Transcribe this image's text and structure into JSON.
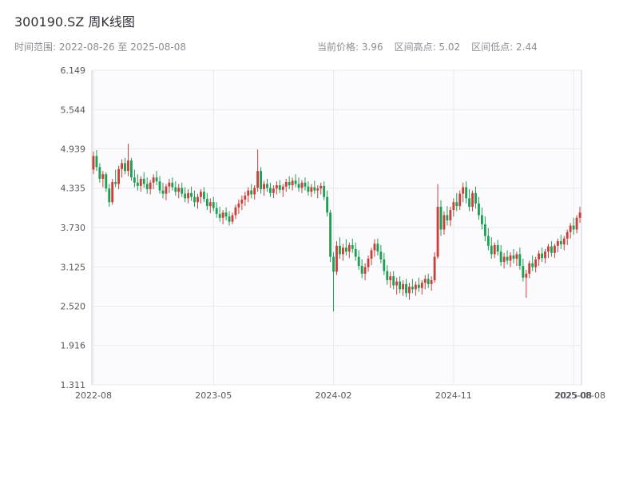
{
  "header": {
    "title": "300190.SZ 周K线图",
    "date_range": "时间范围: 2022-08-26 至 2025-08-08",
    "current_price_text": "当前价格: 3.96",
    "range_high_text": "区间高点: 5.02",
    "range_low_text": "区间低点: 2.44"
  },
  "chart_data": {
    "type": "candlestick",
    "title": "300190.SZ 周K线图",
    "xlabel": "",
    "ylabel": "",
    "ylim": [
      1.311,
      6.149
    ],
    "y_ticks": [
      "6.149",
      "5.544",
      "4.939",
      "4.335",
      "3.730",
      "3.125",
      "2.520",
      "1.916",
      "1.311"
    ],
    "x_ticks": [
      {
        "label": "2022-08",
        "index": 0
      },
      {
        "label": "2023-05",
        "index": 38
      },
      {
        "label": "2024-02",
        "index": 76
      },
      {
        "label": "2024-11",
        "index": 114
      },
      {
        "label": "2025-08",
        "index": 152
      }
    ],
    "end_tick": {
      "label": "2025-08-08",
      "index": 154
    },
    "grid": true,
    "legend": "none",
    "colors": {
      "up": "#c8403a",
      "down": "#1f9e55",
      "grid": "#e9e9ef",
      "border": "#cfcfd8",
      "plot_bg": "#fbfbfd",
      "tick_text": "#55565f"
    },
    "ohlc_note": "weekly candles [open, high, low, close], estimated from plot",
    "candles": [
      [
        4.62,
        4.9,
        4.55,
        4.83
      ],
      [
        4.83,
        4.92,
        4.6,
        4.66
      ],
      [
        4.66,
        4.72,
        4.42,
        4.48
      ],
      [
        4.48,
        4.6,
        4.35,
        4.55
      ],
      [
        4.55,
        4.58,
        4.28,
        4.33
      ],
      [
        4.33,
        4.4,
        4.05,
        4.12
      ],
      [
        4.12,
        4.48,
        4.08,
        4.43
      ],
      [
        4.43,
        4.62,
        4.35,
        4.4
      ],
      [
        4.4,
        4.68,
        4.32,
        4.63
      ],
      [
        4.63,
        4.78,
        4.5,
        4.72
      ],
      [
        4.72,
        4.8,
        4.55,
        4.6
      ],
      [
        4.6,
        5.02,
        4.52,
        4.76
      ],
      [
        4.76,
        4.8,
        4.45,
        4.5
      ],
      [
        4.5,
        4.62,
        4.35,
        4.42
      ],
      [
        4.42,
        4.55,
        4.3,
        4.37
      ],
      [
        4.37,
        4.52,
        4.28,
        4.48
      ],
      [
        4.48,
        4.58,
        4.34,
        4.4
      ],
      [
        4.4,
        4.5,
        4.25,
        4.32
      ],
      [
        4.32,
        4.46,
        4.24,
        4.42
      ],
      [
        4.42,
        4.55,
        4.32,
        4.5
      ],
      [
        4.5,
        4.6,
        4.38,
        4.44
      ],
      [
        4.44,
        4.52,
        4.25,
        4.3
      ],
      [
        4.3,
        4.42,
        4.18,
        4.25
      ],
      [
        4.25,
        4.4,
        4.15,
        4.36
      ],
      [
        4.36,
        4.48,
        4.26,
        4.42
      ],
      [
        4.42,
        4.5,
        4.3,
        4.35
      ],
      [
        4.35,
        4.44,
        4.22,
        4.28
      ],
      [
        4.28,
        4.4,
        4.18,
        4.34
      ],
      [
        4.34,
        4.42,
        4.2,
        4.25
      ],
      [
        4.25,
        4.35,
        4.12,
        4.18
      ],
      [
        4.18,
        4.32,
        4.1,
        4.26
      ],
      [
        4.26,
        4.36,
        4.14,
        4.2
      ],
      [
        4.2,
        4.3,
        4.05,
        4.12
      ],
      [
        4.12,
        4.25,
        4.02,
        4.2
      ],
      [
        4.2,
        4.32,
        4.1,
        4.28
      ],
      [
        4.28,
        4.35,
        4.12,
        4.17
      ],
      [
        4.17,
        4.26,
        4.0,
        4.06
      ],
      [
        4.06,
        4.18,
        3.95,
        4.12
      ],
      [
        4.12,
        4.2,
        3.98,
        4.03
      ],
      [
        4.03,
        4.12,
        3.88,
        3.94
      ],
      [
        3.94,
        4.05,
        3.82,
        3.88
      ],
      [
        3.88,
        4.0,
        3.78,
        3.96
      ],
      [
        3.96,
        4.04,
        3.84,
        3.9
      ],
      [
        3.9,
        3.98,
        3.76,
        3.82
      ],
      [
        3.82,
        3.96,
        3.78,
        3.92
      ],
      [
        3.92,
        4.08,
        3.86,
        4.04
      ],
      [
        4.04,
        4.16,
        3.94,
        4.1
      ],
      [
        4.1,
        4.22,
        4.0,
        4.16
      ],
      [
        4.16,
        4.28,
        4.06,
        4.22
      ],
      [
        4.22,
        4.35,
        4.12,
        4.3
      ],
      [
        4.3,
        4.4,
        4.18,
        4.24
      ],
      [
        4.24,
        4.38,
        4.16,
        4.34
      ],
      [
        4.34,
        4.93,
        4.28,
        4.6
      ],
      [
        4.6,
        4.66,
        4.25,
        4.32
      ],
      [
        4.32,
        4.45,
        4.22,
        4.4
      ],
      [
        4.4,
        4.48,
        4.28,
        4.34
      ],
      [
        4.34,
        4.42,
        4.2,
        4.26
      ],
      [
        4.26,
        4.38,
        4.18,
        4.33
      ],
      [
        4.33,
        4.44,
        4.24,
        4.38
      ],
      [
        4.38,
        4.46,
        4.26,
        4.31
      ],
      [
        4.31,
        4.4,
        4.2,
        4.36
      ],
      [
        4.36,
        4.48,
        4.28,
        4.43
      ],
      [
        4.43,
        4.52,
        4.32,
        4.38
      ],
      [
        4.38,
        4.5,
        4.3,
        4.45
      ],
      [
        4.45,
        4.55,
        4.35,
        4.4
      ],
      [
        4.4,
        4.5,
        4.28,
        4.34
      ],
      [
        4.34,
        4.46,
        4.26,
        4.42
      ],
      [
        4.42,
        4.5,
        4.3,
        4.36
      ],
      [
        4.36,
        4.44,
        4.22,
        4.28
      ],
      [
        4.28,
        4.4,
        4.2,
        4.35
      ],
      [
        4.35,
        4.45,
        4.25,
        4.3
      ],
      [
        4.3,
        4.38,
        4.18,
        4.33
      ],
      [
        4.33,
        4.42,
        4.24,
        4.37
      ],
      [
        4.37,
        4.44,
        4.15,
        4.2
      ],
      [
        4.2,
        4.3,
        3.9,
        3.96
      ],
      [
        3.96,
        4.0,
        3.2,
        3.28
      ],
      [
        3.28,
        3.35,
        2.44,
        3.05
      ],
      [
        3.05,
        3.52,
        3.0,
        3.45
      ],
      [
        3.45,
        3.58,
        3.25,
        3.32
      ],
      [
        3.32,
        3.48,
        3.22,
        3.42
      ],
      [
        3.42,
        3.55,
        3.3,
        3.36
      ],
      [
        3.36,
        3.5,
        3.26,
        3.46
      ],
      [
        3.46,
        3.56,
        3.34,
        3.4
      ],
      [
        3.4,
        3.5,
        3.22,
        3.28
      ],
      [
        3.28,
        3.38,
        3.08,
        3.14
      ],
      [
        3.14,
        3.24,
        2.95,
        3.02
      ],
      [
        3.02,
        3.18,
        2.92,
        3.12
      ],
      [
        3.12,
        3.3,
        3.05,
        3.25
      ],
      [
        3.25,
        3.42,
        3.15,
        3.38
      ],
      [
        3.38,
        3.55,
        3.28,
        3.48
      ],
      [
        3.48,
        3.56,
        3.3,
        3.36
      ],
      [
        3.36,
        3.46,
        3.18,
        3.24
      ],
      [
        3.24,
        3.34,
        3.0,
        3.06
      ],
      [
        3.06,
        3.15,
        2.85,
        2.92
      ],
      [
        2.92,
        3.05,
        2.8,
        2.98
      ],
      [
        2.98,
        3.06,
        2.78,
        2.84
      ],
      [
        2.84,
        2.96,
        2.7,
        2.9
      ],
      [
        2.9,
        2.98,
        2.72,
        2.78
      ],
      [
        2.78,
        2.92,
        2.68,
        2.86
      ],
      [
        2.86,
        2.94,
        2.66,
        2.72
      ],
      [
        2.72,
        2.88,
        2.62,
        2.82
      ],
      [
        2.82,
        2.94,
        2.72,
        2.78
      ],
      [
        2.78,
        2.9,
        2.68,
        2.85
      ],
      [
        2.85,
        2.96,
        2.74,
        2.8
      ],
      [
        2.8,
        2.92,
        2.7,
        2.88
      ],
      [
        2.88,
        3.0,
        2.78,
        2.94
      ],
      [
        2.94,
        3.02,
        2.8,
        2.86
      ],
      [
        2.86,
        2.98,
        2.76,
        2.92
      ],
      [
        2.92,
        3.35,
        2.88,
        3.28
      ],
      [
        3.28,
        4.4,
        3.25,
        4.05
      ],
      [
        4.05,
        4.15,
        3.6,
        3.7
      ],
      [
        3.7,
        3.98,
        3.62,
        3.92
      ],
      [
        3.92,
        4.06,
        3.76,
        3.84
      ],
      [
        3.84,
        4.05,
        3.75,
        4.0
      ],
      [
        4.0,
        4.18,
        3.9,
        4.12
      ],
      [
        4.12,
        4.26,
        3.98,
        4.06
      ],
      [
        4.06,
        4.3,
        4.0,
        4.25
      ],
      [
        4.25,
        4.42,
        4.12,
        4.35
      ],
      [
        4.35,
        4.44,
        4.1,
        4.18
      ],
      [
        4.18,
        4.32,
        3.98,
        4.05
      ],
      [
        4.05,
        4.3,
        3.98,
        4.26
      ],
      [
        4.26,
        4.36,
        4.02,
        4.1
      ],
      [
        4.1,
        4.2,
        3.85,
        3.92
      ],
      [
        3.92,
        4.04,
        3.7,
        3.78
      ],
      [
        3.78,
        3.9,
        3.52,
        3.6
      ],
      [
        3.6,
        3.72,
        3.38,
        3.45
      ],
      [
        3.45,
        3.58,
        3.25,
        3.32
      ],
      [
        3.32,
        3.5,
        3.26,
        3.46
      ],
      [
        3.46,
        3.54,
        3.3,
        3.36
      ],
      [
        3.36,
        3.46,
        3.14,
        3.2
      ],
      [
        3.2,
        3.34,
        3.1,
        3.28
      ],
      [
        3.28,
        3.38,
        3.16,
        3.22
      ],
      [
        3.22,
        3.35,
        3.12,
        3.3
      ],
      [
        3.3,
        3.4,
        3.18,
        3.25
      ],
      [
        3.25,
        3.36,
        3.14,
        3.32
      ],
      [
        3.32,
        3.42,
        3.08,
        3.14
      ],
      [
        3.14,
        3.25,
        2.9,
        2.96
      ],
      [
        2.96,
        3.08,
        2.65,
        3.02
      ],
      [
        3.02,
        3.22,
        2.95,
        3.18
      ],
      [
        3.18,
        3.3,
        3.06,
        3.12
      ],
      [
        3.12,
        3.28,
        3.04,
        3.24
      ],
      [
        3.24,
        3.38,
        3.14,
        3.33
      ],
      [
        3.33,
        3.42,
        3.2,
        3.26
      ],
      [
        3.26,
        3.4,
        3.18,
        3.36
      ],
      [
        3.36,
        3.48,
        3.26,
        3.44
      ],
      [
        3.44,
        3.52,
        3.28,
        3.34
      ],
      [
        3.34,
        3.48,
        3.26,
        3.45
      ],
      [
        3.45,
        3.56,
        3.35,
        3.52
      ],
      [
        3.52,
        3.62,
        3.4,
        3.47
      ],
      [
        3.47,
        3.6,
        3.38,
        3.56
      ],
      [
        3.56,
        3.7,
        3.46,
        3.66
      ],
      [
        3.66,
        3.8,
        3.56,
        3.76
      ],
      [
        3.76,
        3.88,
        3.62,
        3.7
      ],
      [
        3.7,
        3.92,
        3.64,
        3.88
      ],
      [
        3.88,
        4.05,
        3.8,
        3.96
      ]
    ]
  }
}
